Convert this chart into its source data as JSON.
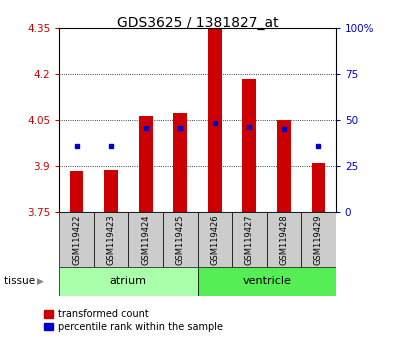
{
  "title": "GDS3625 / 1381827_at",
  "samples": [
    "GSM119422",
    "GSM119423",
    "GSM119424",
    "GSM119425",
    "GSM119426",
    "GSM119427",
    "GSM119428",
    "GSM119429"
  ],
  "red_values": [
    3.885,
    3.888,
    4.065,
    4.075,
    4.35,
    4.185,
    4.05,
    3.91
  ],
  "blue_values": [
    3.965,
    3.968,
    4.025,
    4.025,
    4.04,
    4.028,
    4.022,
    3.968
  ],
  "ylim_left": [
    3.75,
    4.35
  ],
  "ylim_right": [
    0,
    100
  ],
  "yticks_left": [
    3.75,
    3.9,
    4.05,
    4.2,
    4.35
  ],
  "yticks_right": [
    0,
    25,
    50,
    75,
    100
  ],
  "ytick_labels_left": [
    "3.75",
    "3.9",
    "4.05",
    "4.2",
    "4.35"
  ],
  "ytick_labels_right": [
    "0",
    "25",
    "50",
    "75",
    "100%"
  ],
  "groups": [
    {
      "name": "atrium",
      "samples": [
        0,
        1,
        2,
        3
      ],
      "color": "#aaffaa"
    },
    {
      "name": "ventricle",
      "samples": [
        4,
        5,
        6,
        7
      ],
      "color": "#55ee55"
    }
  ],
  "bar_bottom": 3.75,
  "bar_width": 0.4,
  "red_color": "#cc0000",
  "blue_color": "#0000cc",
  "bg_color": "#cccccc",
  "left_axis_color": "#cc0000",
  "right_axis_color": "#0000cc",
  "tissue_label": "tissue",
  "legend_red": "transformed count",
  "legend_blue": "percentile rank within the sample"
}
